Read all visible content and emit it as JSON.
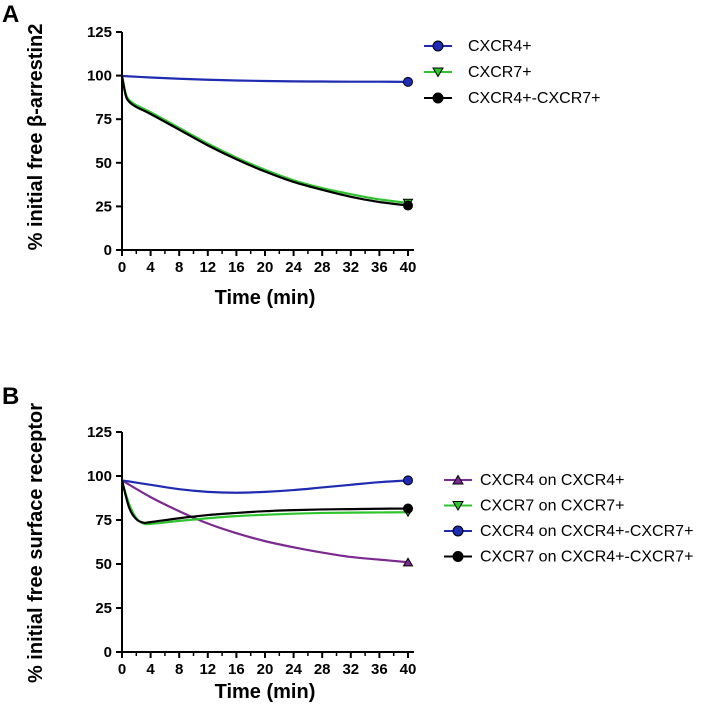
{
  "chart_data": [
    {
      "type": "line",
      "panel_label": "A",
      "xlabel": "Time (min)",
      "ylabel": "% initial free β-arrestin2",
      "xlim": [
        0,
        40
      ],
      "ylim": [
        0,
        125
      ],
      "x_ticks": [
        0,
        4,
        8,
        12,
        16,
        20,
        24,
        28,
        32,
        36,
        40
      ],
      "y_ticks": [
        0,
        25,
        50,
        75,
        100,
        125
      ],
      "grid": false,
      "legend_position": "right",
      "series": [
        {
          "name": "CXCR4+",
          "color": "#1f2bb0",
          "marker": "circle",
          "marker_fill": "#1f2bb0",
          "points": [
            [
              0,
              99.8
            ],
            [
              4,
              98.9
            ],
            [
              8,
              98.2
            ],
            [
              12,
              97.6
            ],
            [
              16,
              97.2
            ],
            [
              20,
              96.9
            ],
            [
              24,
              96.7
            ],
            [
              28,
              96.6
            ],
            [
              32,
              96.5
            ],
            [
              36,
              96.5
            ],
            [
              40,
              96.4
            ]
          ],
          "end_marker": [
            40,
            96.4
          ]
        },
        {
          "name": "CXCR7+",
          "color": "#2fc42f",
          "marker": "triangle-down",
          "marker_fill": "#2fc42f",
          "points": [
            [
              0,
              100
            ],
            [
              0.5,
              90
            ],
            [
              1,
              86
            ],
            [
              2,
              83
            ],
            [
              4,
              79
            ],
            [
              8,
              70
            ],
            [
              12,
              61
            ],
            [
              16,
              53
            ],
            [
              20,
              46
            ],
            [
              24,
              40
            ],
            [
              28,
              35.5
            ],
            [
              32,
              32
            ],
            [
              36,
              29
            ],
            [
              40,
              27
            ]
          ],
          "end_marker": [
            40,
            27
          ]
        },
        {
          "name": "CXCR4+-CXCR7+",
          "color": "#000000",
          "marker": "circle",
          "marker_fill": "#000000",
          "points": [
            [
              0,
              100
            ],
            [
              0.5,
              89
            ],
            [
              1,
              85
            ],
            [
              2,
              82
            ],
            [
              4,
              78
            ],
            [
              8,
              69
            ],
            [
              12,
              60
            ],
            [
              16,
              52
            ],
            [
              20,
              45
            ],
            [
              24,
              39
            ],
            [
              28,
              34.5
            ],
            [
              32,
              30.5
            ],
            [
              36,
              27.5
            ],
            [
              40,
              25.5
            ]
          ],
          "end_marker": [
            40,
            25.5
          ]
        }
      ]
    },
    {
      "type": "line",
      "panel_label": "B",
      "xlabel": "Time (min)",
      "ylabel": "% initial free surface receptor",
      "xlim": [
        0,
        40
      ],
      "ylim": [
        0,
        125
      ],
      "x_ticks": [
        0,
        4,
        8,
        12,
        16,
        20,
        24,
        28,
        32,
        36,
        40
      ],
      "y_ticks": [
        0,
        25,
        50,
        75,
        100,
        125
      ],
      "grid": false,
      "legend_position": "right",
      "series": [
        {
          "name": "CXCR4 on CXCR4+",
          "color": "#7b2a8f",
          "marker": "triangle-up",
          "marker_fill": "#7b2a8f",
          "points": [
            [
              0,
              97.5
            ],
            [
              4,
              88
            ],
            [
              8,
              80
            ],
            [
              12,
              73
            ],
            [
              16,
              67.5
            ],
            [
              20,
              63
            ],
            [
              24,
              59.5
            ],
            [
              28,
              56.5
            ],
            [
              32,
              54
            ],
            [
              36,
              52.5
            ],
            [
              40,
              51
            ]
          ],
          "end_marker": [
            40,
            51
          ]
        },
        {
          "name": "CXCR7 on CXCR7+",
          "color": "#2fc42f",
          "marker": "triangle-down",
          "marker_fill": "#2fc42f",
          "points": [
            [
              0,
              97
            ],
            [
              1,
              84
            ],
            [
              2,
              76
            ],
            [
              3,
              73
            ],
            [
              4,
              72.8
            ],
            [
              8,
              74.5
            ],
            [
              12,
              76
            ],
            [
              16,
              77.2
            ],
            [
              20,
              78
            ],
            [
              24,
              78.6
            ],
            [
              28,
              79
            ],
            [
              32,
              79.2
            ],
            [
              36,
              79.3
            ],
            [
              40,
              79.4
            ]
          ],
          "end_marker": [
            40,
            79.4
          ]
        },
        {
          "name": "CXCR4 on CXCR4+-CXCR7+",
          "color": "#1f2bb0",
          "marker": "circle",
          "marker_fill": "#1f2bb0",
          "points": [
            [
              0,
              97.5
            ],
            [
              4,
              95
            ],
            [
              8,
              92.5
            ],
            [
              12,
              91
            ],
            [
              16,
              90.5
            ],
            [
              20,
              91
            ],
            [
              24,
              92
            ],
            [
              28,
              93.5
            ],
            [
              32,
              95
            ],
            [
              36,
              96.5
            ],
            [
              40,
              97.5
            ]
          ],
          "end_marker": [
            40,
            97.5
          ]
        },
        {
          "name": "CXCR7 on CXCR4+-CXCR7+",
          "color": "#000000",
          "marker": "circle",
          "marker_fill": "#000000",
          "points": [
            [
              0,
              97.5
            ],
            [
              1,
              82
            ],
            [
              2,
              75.5
            ],
            [
              3,
              73.5
            ],
            [
              4,
              73.8
            ],
            [
              8,
              76
            ],
            [
              12,
              77.8
            ],
            [
              16,
              79
            ],
            [
              20,
              80
            ],
            [
              24,
              80.6
            ],
            [
              28,
              81
            ],
            [
              32,
              81.2
            ],
            [
              36,
              81.4
            ],
            [
              40,
              81.5
            ]
          ],
          "end_marker": [
            40,
            81.5
          ]
        }
      ]
    }
  ]
}
